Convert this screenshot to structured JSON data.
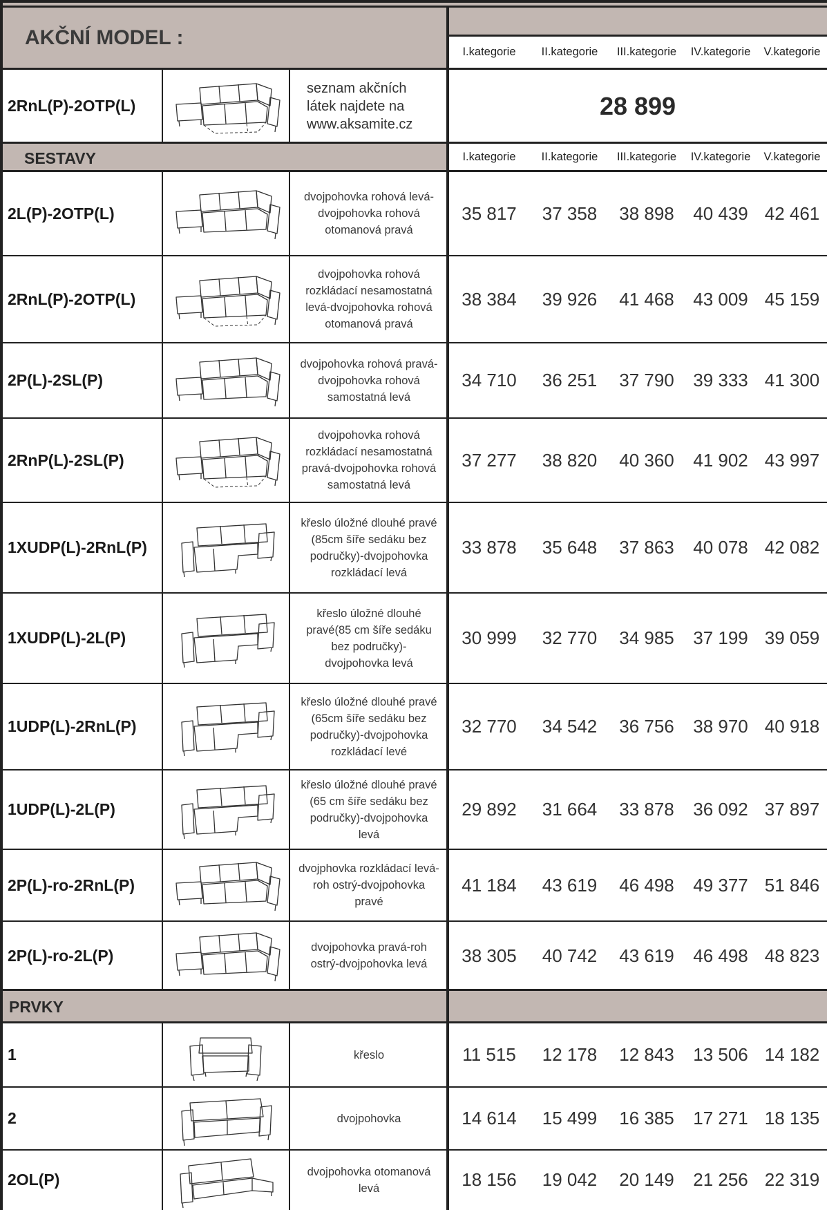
{
  "header": {
    "title": "AKČNÍ MODEL :",
    "categories": [
      "I.kategorie",
      "II.kategorie",
      "III.kategorie",
      "IV.kategorie",
      "V.kategorie"
    ]
  },
  "akce": {
    "code": "2RnL(P)-2OTP(L)",
    "icon": "corner-sofa-with-bed-icon",
    "note_lines": [
      "seznam akčních",
      "látek najdete na",
      "www.aksamite.cz"
    ],
    "price": "28 899"
  },
  "sestavy": {
    "title": "SESTAVY",
    "categories": [
      "I.kategorie",
      "II.kategorie",
      "III.kategorie",
      "IV.kategorie",
      "V.kategorie"
    ],
    "rows": [
      {
        "code": "2L(P)-2OTP(L)",
        "icon": "corner-sofa-ottoman-icon",
        "desc": [
          "dvojpohovka rohová levá-",
          "dvojpohovka rohová",
          "otomanová pravá"
        ],
        "prices": [
          "35 817",
          "37 358",
          "38 898",
          "40 439",
          "42 461"
        ]
      },
      {
        "code": "2RnL(P)-2OTP(L)",
        "icon": "corner-sofa-with-bed-icon",
        "desc": [
          "dvojpohovka rohová",
          "rozkládací nesamostatná",
          "levá-dvojpohovka rohová",
          "otomanová pravá"
        ],
        "prices": [
          "38 384",
          "39 926",
          "41 468",
          "43 009",
          "45 159"
        ]
      },
      {
        "code": "2P(L)-2SL(P)",
        "icon": "corner-sofa-icon",
        "desc": [
          "dvojpohovka rohová pravá-",
          "dvojpohovka rohová",
          "samostatná levá"
        ],
        "prices": [
          "34 710",
          "36 251",
          "37 790",
          "39 333",
          "41 300"
        ]
      },
      {
        "code": "2RnP(L)-2SL(P)",
        "icon": "corner-sofa-bed-icon",
        "desc": [
          "dvojpohovka rohová",
          "rozkládací nesamostatná",
          "pravá-dvojpohovka rohová",
          "samostatná levá"
        ],
        "prices": [
          "37 277",
          "38 820",
          "40 360",
          "41 902",
          "43 997"
        ]
      },
      {
        "code": "1XUDP(L)-2RnL(P)",
        "icon": "sofa-with-chaise-icon",
        "desc": [
          "křeslo úložné dlouhé pravé",
          "(85cm šíře sedáku bez",
          "područky)-dvojpohovka",
          "rozkládací levá"
        ],
        "prices": [
          "33 878",
          "35 648",
          "37 863",
          "40 078",
          "42 082"
        ]
      },
      {
        "code": "1XUDP(L)-2L(P)",
        "icon": "sofa-with-chaise-icon",
        "desc": [
          "křeslo úložné dlouhé",
          "pravé(85 cm šíře sedáku",
          "bez područky)-",
          "dvojpohovka levá"
        ],
        "prices": [
          "30 999",
          "32 770",
          "34 985",
          "37 199",
          "39 059"
        ]
      },
      {
        "code": "1UDP(L)-2RnL(P)",
        "icon": "sofa-with-chaise-icon",
        "desc": [
          "křeslo úložné dlouhé pravé",
          "(65cm šíře sedáku bez",
          "područky)-dvojpohovka",
          "rozkládací levé"
        ],
        "prices": [
          "32 770",
          "34 542",
          "36 756",
          "38 970",
          "40 918"
        ]
      },
      {
        "code": "1UDP(L)-2L(P)",
        "icon": "sofa-with-chaise-icon",
        "desc": [
          "křeslo úložné dlouhé pravé",
          "(65 cm šíře sedáku bez",
          "područky)-dvojpohovka",
          "levá"
        ],
        "prices": [
          "29 892",
          "31 664",
          "33 878",
          "36 092",
          "37 897"
        ]
      },
      {
        "code": "2P(L)-ro-2RnL(P)",
        "icon": "corner-sofa-sharp-icon",
        "desc": [
          "dvojphovka rozkládací levá-",
          "roh ostrý-dvojpohovka",
          "pravé"
        ],
        "prices": [
          "41 184",
          "43 619",
          "46 498",
          "49 377",
          "51 846"
        ]
      },
      {
        "code": "2P(L)-ro-2L(P)",
        "icon": "corner-sofa-sharp-icon",
        "desc": [
          "dvojpohovka pravá-roh",
          "ostrý-dvojpohovka levá"
        ],
        "prices": [
          "38 305",
          "40 742",
          "43 619",
          "46 498",
          "48 823"
        ]
      }
    ]
  },
  "prvky": {
    "title": "PRVKY",
    "rows": [
      {
        "code": "1",
        "icon": "armchair-icon",
        "desc": [
          "křeslo"
        ],
        "prices": [
          "11 515",
          "12 178",
          "12 843",
          "13 506",
          "14 182"
        ]
      },
      {
        "code": "2",
        "icon": "loveseat-icon",
        "desc": [
          "dvojpohovka"
        ],
        "prices": [
          "14 614",
          "15 499",
          "16 385",
          "17 271",
          "18 135"
        ]
      },
      {
        "code": "2OL(P)",
        "icon": "sofa-ottoman-icon",
        "desc": [
          "dvojpohovka otomanová",
          "levá"
        ],
        "prices": [
          "18 156",
          "19 042",
          "20 149",
          "21 256",
          "22 319"
        ]
      }
    ]
  },
  "colors": {
    "header_bg": "#c2b7b2",
    "rule": "#222222"
  }
}
